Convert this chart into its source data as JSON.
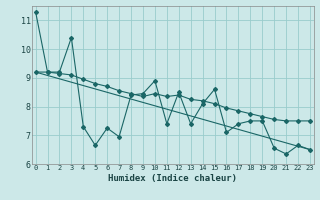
{
  "xlabel": "Humidex (Indice chaleur)",
  "bg_color": "#cce8e8",
  "grid_color": "#99cccc",
  "line_color": "#1a6666",
  "xlim": [
    -0.3,
    23.3
  ],
  "ylim": [
    6,
    11.5
  ],
  "yticks": [
    6,
    7,
    8,
    9,
    10,
    11
  ],
  "xticks": [
    0,
    1,
    2,
    3,
    4,
    5,
    6,
    7,
    8,
    9,
    10,
    11,
    12,
    13,
    14,
    15,
    16,
    17,
    18,
    19,
    20,
    21,
    22,
    23
  ],
  "series1_x": [
    0,
    1,
    2,
    3,
    4,
    5,
    6,
    7,
    8,
    9,
    10,
    11,
    12,
    13,
    14,
    15,
    16,
    17,
    18,
    19,
    20,
    21,
    22,
    23
  ],
  "series1_y": [
    11.3,
    9.2,
    9.2,
    10.4,
    7.3,
    6.65,
    7.25,
    6.95,
    8.4,
    8.45,
    8.9,
    7.4,
    8.5,
    7.4,
    8.1,
    8.6,
    7.1,
    7.4,
    7.5,
    7.5,
    6.55,
    6.35,
    6.65,
    6.5
  ],
  "series2_x": [
    0,
    1,
    2,
    3,
    4,
    5,
    6,
    7,
    8,
    9,
    10,
    11,
    12,
    13,
    14,
    15,
    16,
    17,
    18,
    19,
    20,
    21,
    22,
    23
  ],
  "series2_y": [
    9.2,
    9.2,
    9.15,
    9.1,
    8.95,
    8.8,
    8.7,
    8.55,
    8.45,
    8.35,
    8.45,
    8.35,
    8.4,
    8.25,
    8.2,
    8.1,
    7.95,
    7.85,
    7.75,
    7.65,
    7.55,
    7.5,
    7.5,
    7.5
  ],
  "trend_x": [
    0,
    23
  ],
  "trend_y": [
    9.2,
    6.5
  ]
}
